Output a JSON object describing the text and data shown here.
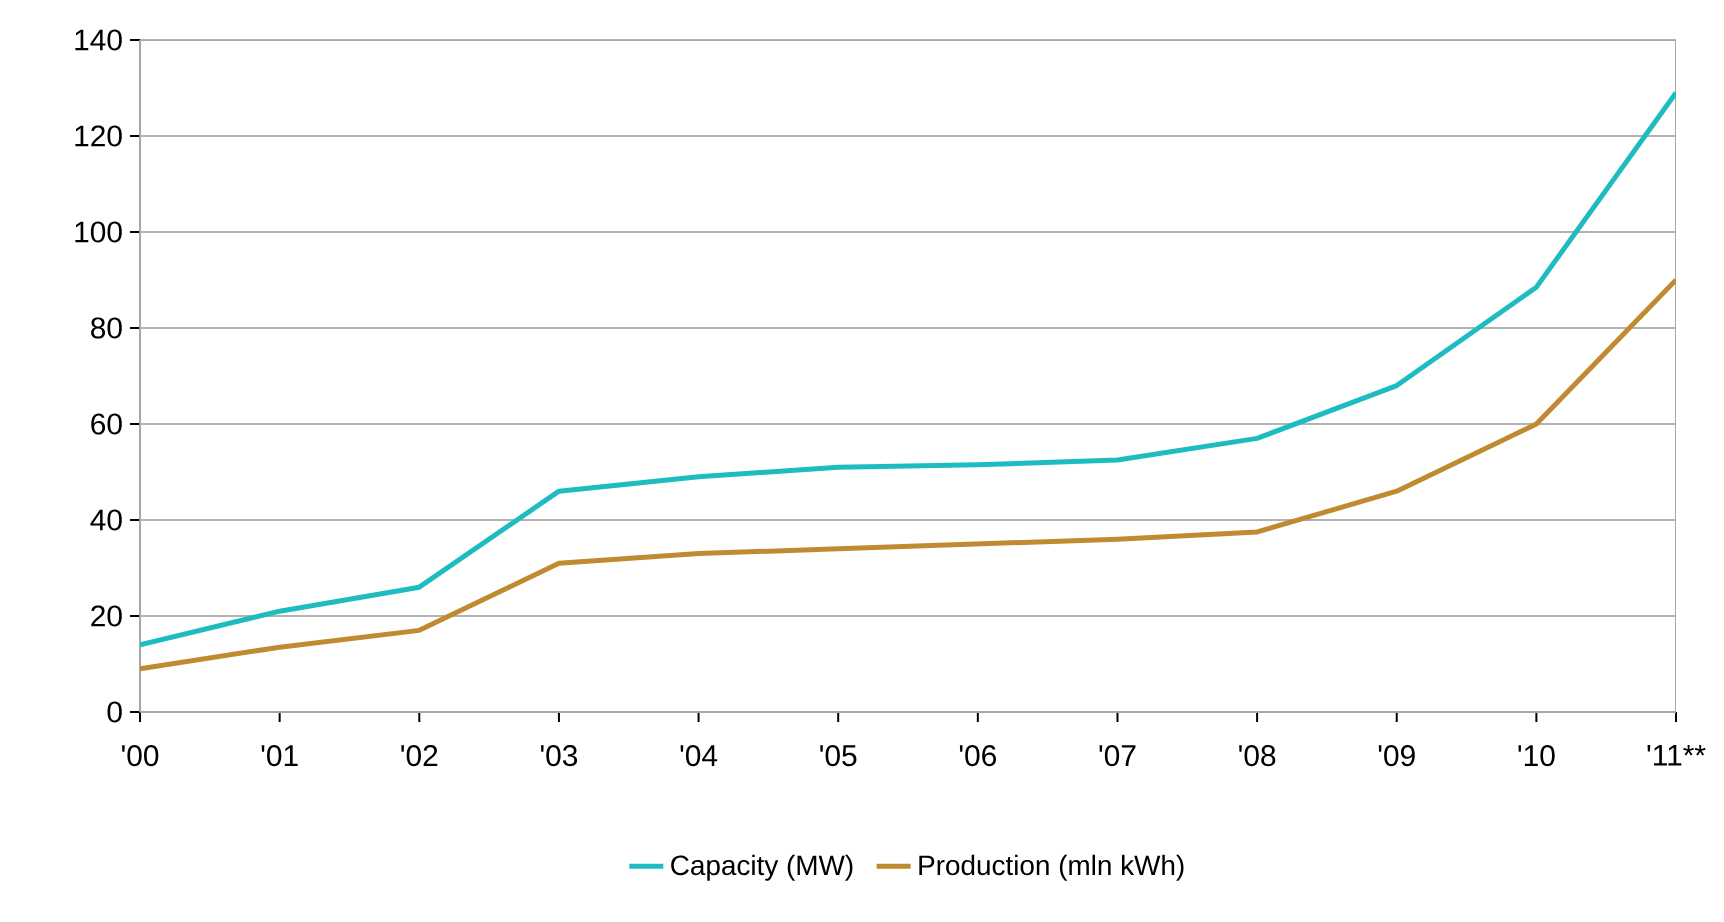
{
  "chart_data": {
    "type": "line",
    "categories": [
      "'00",
      "'01",
      "'02",
      "'03",
      "'04",
      "'05",
      "'06",
      "'07",
      "'08",
      "'09",
      "'10",
      "'11**"
    ],
    "series": [
      {
        "name": "Capacity (MW)",
        "color": "#1ebcc0",
        "values": [
          14,
          21,
          26,
          46,
          49,
          51,
          51.5,
          52.5,
          57,
          68,
          88.5,
          129
        ]
      },
      {
        "name": "Production  (mln kWh)",
        "color": "#c08a30",
        "values": [
          9,
          13.5,
          17,
          31,
          33,
          34,
          35,
          36,
          37.5,
          46,
          60,
          90
        ]
      }
    ],
    "ylim": [
      0,
      140
    ],
    "yticks": [
      0,
      20,
      40,
      60,
      80,
      100,
      120,
      140
    ],
    "grid": "y",
    "legend": "bottom",
    "marker": "none",
    "line_style": "solid"
  }
}
